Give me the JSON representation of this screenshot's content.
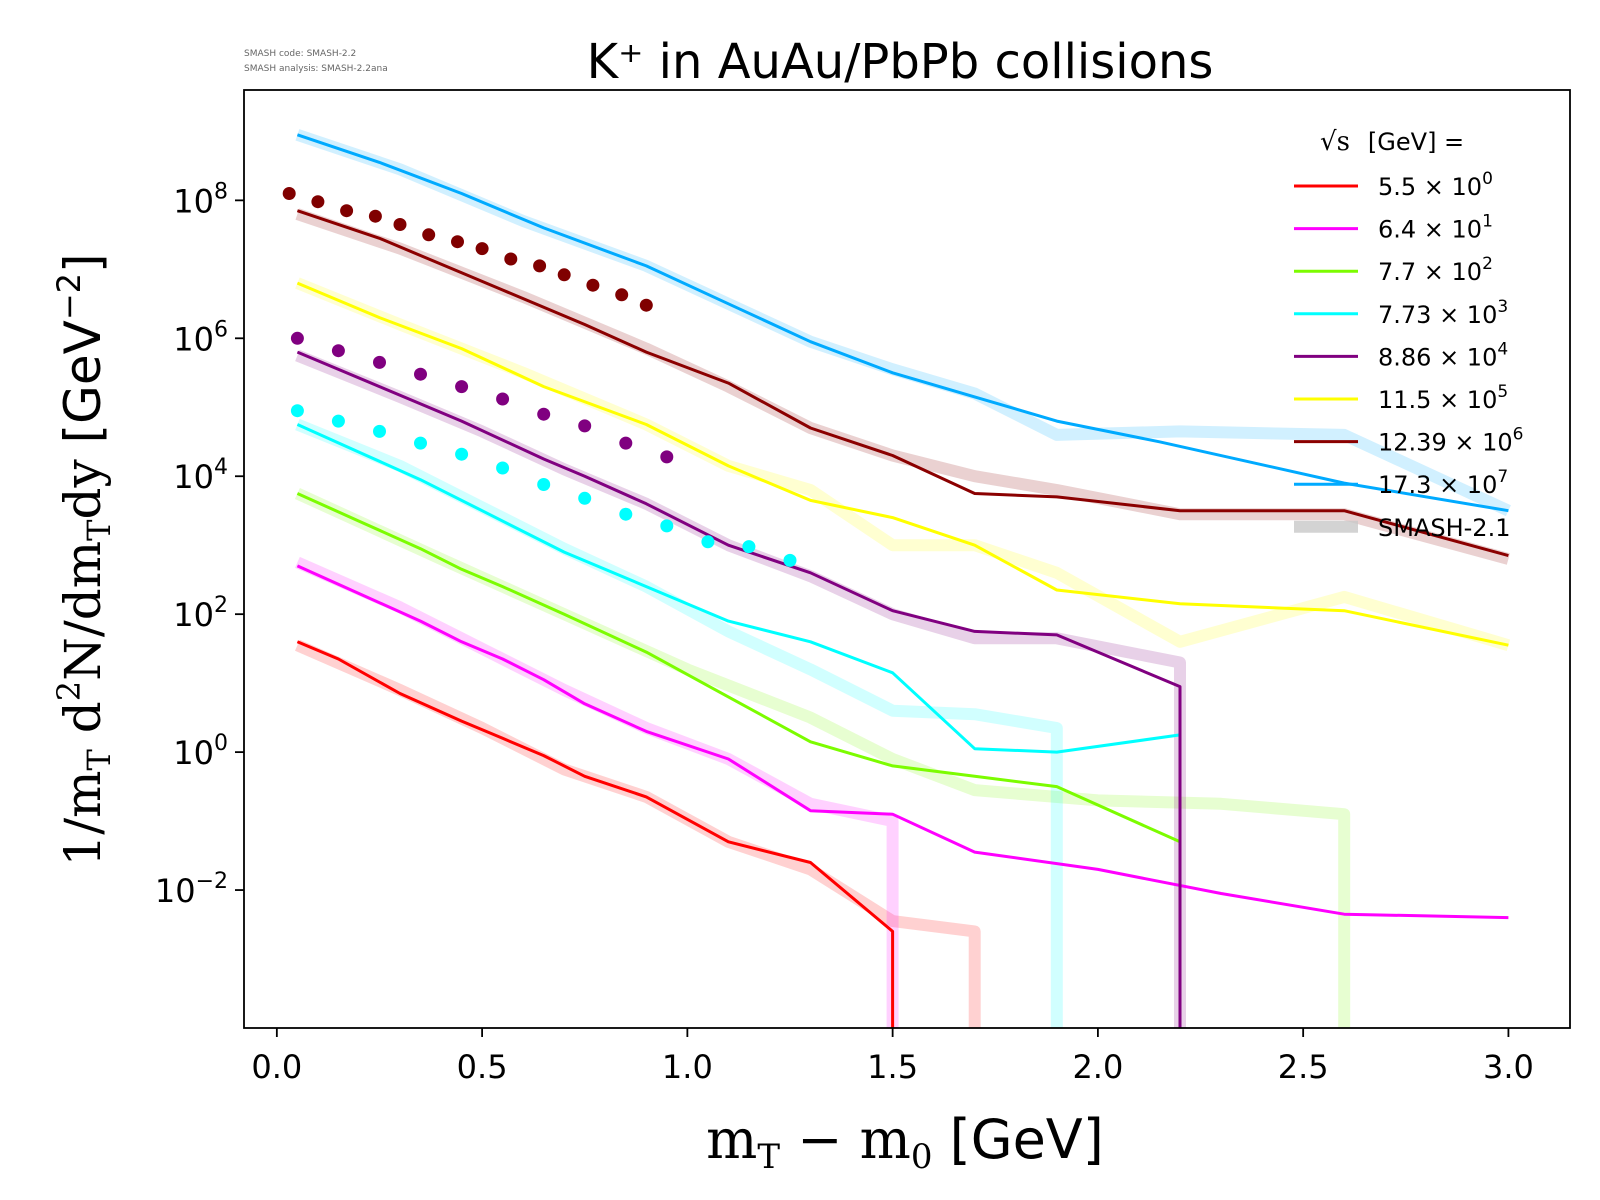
{
  "page": {
    "notes": [
      "SMASH code:      SMASH-2.2",
      "SMASH analysis: SMASH-2.2ana"
    ]
  },
  "chart_data": {
    "type": "line",
    "title": "K⁺ in AuAu/PbPb collisions",
    "xlabel": "m_T − m_0 [GeV]",
    "ylabel": "1/m_T d²N/dm_T dy [GeV⁻²]",
    "xlim": [
      -0.08,
      3.15
    ],
    "ylog": true,
    "ylim_log10": [
      -4.0,
      9.6
    ],
    "x_ticks": [
      "0.0",
      "0.5",
      "1.0",
      "1.5",
      "2.0",
      "2.5",
      "3.0"
    ],
    "y_ticks": [
      {
        "base": "10",
        "exp": "−2",
        "value": -2
      },
      {
        "base": "10",
        "exp": "0",
        "value": 0
      },
      {
        "base": "10",
        "exp": "2",
        "value": 2
      },
      {
        "base": "10",
        "exp": "4",
        "value": 4
      },
      {
        "base": "10",
        "exp": "6",
        "value": 6
      },
      {
        "base": "10",
        "exp": "8",
        "value": 8
      }
    ],
    "legend": {
      "title_prefix": "√s",
      "title_suffix": "[GeV] =",
      "placement": "top-right",
      "entries": [
        {
          "mantissa": "5.5",
          "exp": "0",
          "color": "#ff0000"
        },
        {
          "mantissa": "6.4",
          "exp": "1",
          "color": "#ff00ff"
        },
        {
          "mantissa": "7.7",
          "exp": "2",
          "color": "#7cfc00"
        },
        {
          "mantissa": "7.73",
          "exp": "3",
          "color": "#00ffff"
        },
        {
          "mantissa": "8.86",
          "exp": "4",
          "color": "#800080"
        },
        {
          "mantissa": "11.5",
          "exp": "5",
          "color": "#ffff00"
        },
        {
          "mantissa": "12.39",
          "exp": "6",
          "color": "#8b0000"
        },
        {
          "mantissa": "17.3",
          "exp": "7",
          "color": "#00aaff"
        }
      ],
      "reference_label": "SMASH-2.1",
      "reference_color": "#c8c8c8"
    },
    "series": [
      {
        "sqrt_s": "5.5",
        "color": "#ff0000",
        "line": [
          [
            0.05,
            1.6
          ],
          [
            0.15,
            1.35
          ],
          [
            0.3,
            0.85
          ],
          [
            0.45,
            0.45
          ],
          [
            0.55,
            0.2
          ],
          [
            0.65,
            -0.05
          ],
          [
            0.75,
            -0.35
          ],
          [
            0.9,
            -0.65
          ],
          [
            1.1,
            -1.3
          ],
          [
            1.3,
            -1.6
          ],
          [
            1.5,
            -2.6
          ],
          [
            1.5,
            -4.0
          ]
        ],
        "ref": [
          [
            0.05,
            1.55
          ],
          [
            0.3,
            0.9
          ],
          [
            0.5,
            0.35
          ],
          [
            0.7,
            -0.25
          ],
          [
            0.9,
            -0.65
          ],
          [
            1.1,
            -1.3
          ],
          [
            1.3,
            -1.7
          ],
          [
            1.5,
            -2.45
          ],
          [
            1.7,
            -2.6
          ],
          [
            1.7,
            -4.0
          ]
        ]
      },
      {
        "sqrt_s": "6.4",
        "color": "#ff00ff",
        "line": [
          [
            0.05,
            2.7
          ],
          [
            0.2,
            2.3
          ],
          [
            0.35,
            1.9
          ],
          [
            0.45,
            1.6
          ],
          [
            0.55,
            1.35
          ],
          [
            0.65,
            1.05
          ],
          [
            0.75,
            0.7
          ],
          [
            0.9,
            0.3
          ],
          [
            1.1,
            -0.1
          ],
          [
            1.3,
            -0.85
          ],
          [
            1.5,
            -0.9
          ],
          [
            1.7,
            -1.45
          ],
          [
            2.0,
            -1.7
          ],
          [
            2.3,
            -2.05
          ],
          [
            2.6,
            -2.35
          ],
          [
            3.0,
            -2.4
          ]
        ],
        "ref": [
          [
            0.05,
            2.75
          ],
          [
            0.3,
            2.1
          ],
          [
            0.5,
            1.5
          ],
          [
            0.7,
            0.9
          ],
          [
            0.9,
            0.35
          ],
          [
            1.1,
            -0.1
          ],
          [
            1.3,
            -0.75
          ],
          [
            1.5,
            -1.0
          ],
          [
            1.5,
            -4.0
          ]
        ]
      },
      {
        "sqrt_s": "7.7",
        "color": "#7cfc00",
        "line": [
          [
            0.05,
            3.75
          ],
          [
            0.2,
            3.35
          ],
          [
            0.35,
            2.95
          ],
          [
            0.45,
            2.65
          ],
          [
            0.55,
            2.4
          ],
          [
            0.7,
            2.0
          ],
          [
            0.9,
            1.45
          ],
          [
            1.1,
            0.8
          ],
          [
            1.3,
            0.15
          ],
          [
            1.5,
            -0.2
          ],
          [
            1.7,
            -0.35
          ],
          [
            1.9,
            -0.5
          ],
          [
            2.2,
            -1.3
          ]
        ],
        "ref": [
          [
            0.05,
            3.75
          ],
          [
            0.4,
            2.8
          ],
          [
            0.7,
            2.0
          ],
          [
            1.0,
            1.2
          ],
          [
            1.3,
            0.5
          ],
          [
            1.5,
            -0.1
          ],
          [
            1.7,
            -0.55
          ],
          [
            2.0,
            -0.7
          ],
          [
            2.3,
            -0.75
          ],
          [
            2.6,
            -0.9
          ],
          [
            2.6,
            -4.0
          ]
        ]
      },
      {
        "sqrt_s": "7.73",
        "color": "#00ffff",
        "line": [
          [
            0.05,
            4.75
          ],
          [
            0.2,
            4.35
          ],
          [
            0.35,
            3.95
          ],
          [
            0.5,
            3.5
          ],
          [
            0.7,
            2.9
          ],
          [
            0.9,
            2.4
          ],
          [
            1.1,
            1.9
          ],
          [
            1.3,
            1.6
          ],
          [
            1.5,
            1.15
          ],
          [
            1.7,
            0.05
          ],
          [
            1.9,
            0.0
          ],
          [
            2.2,
            0.25
          ]
        ],
        "ref": [
          [
            0.05,
            4.75
          ],
          [
            0.3,
            4.15
          ],
          [
            0.5,
            3.55
          ],
          [
            0.7,
            2.95
          ],
          [
            0.9,
            2.4
          ],
          [
            1.1,
            1.75
          ],
          [
            1.3,
            1.2
          ],
          [
            1.5,
            0.6
          ],
          [
            1.7,
            0.55
          ],
          [
            1.9,
            0.35
          ],
          [
            1.9,
            -4.0
          ]
        ]
      },
      {
        "sqrt_s": "8.86",
        "color": "#800080",
        "line": [
          [
            0.05,
            5.8
          ],
          [
            0.25,
            5.3
          ],
          [
            0.45,
            4.8
          ],
          [
            0.65,
            4.25
          ],
          [
            0.75,
            4.0
          ],
          [
            0.9,
            3.6
          ],
          [
            1.1,
            3.0
          ],
          [
            1.3,
            2.6
          ],
          [
            1.5,
            2.05
          ],
          [
            1.7,
            1.75
          ],
          [
            1.9,
            1.7
          ],
          [
            2.2,
            0.95
          ],
          [
            2.2,
            -4.0
          ]
        ],
        "ref": [
          [
            0.05,
            5.75
          ],
          [
            0.3,
            5.15
          ],
          [
            0.5,
            4.65
          ],
          [
            0.7,
            4.1
          ],
          [
            0.9,
            3.6
          ],
          [
            1.1,
            3.0
          ],
          [
            1.3,
            2.55
          ],
          [
            1.5,
            2.0
          ],
          [
            1.7,
            1.65
          ],
          [
            1.9,
            1.65
          ],
          [
            2.2,
            1.3
          ],
          [
            2.2,
            -4.0
          ]
        ]
      },
      {
        "sqrt_s": "11.5",
        "color": "#ffff00",
        "line": [
          [
            0.05,
            6.8
          ],
          [
            0.25,
            6.3
          ],
          [
            0.45,
            5.85
          ],
          [
            0.65,
            5.3
          ],
          [
            0.9,
            4.75
          ],
          [
            1.1,
            4.15
          ],
          [
            1.3,
            3.65
          ],
          [
            1.5,
            3.4
          ],
          [
            1.7,
            3.0
          ],
          [
            1.9,
            2.35
          ],
          [
            2.2,
            2.15
          ],
          [
            2.6,
            2.05
          ],
          [
            3.0,
            1.55
          ]
        ],
        "ref": [
          [
            0.05,
            6.8
          ],
          [
            0.3,
            6.2
          ],
          [
            0.6,
            5.5
          ],
          [
            0.9,
            4.75
          ],
          [
            1.1,
            4.15
          ],
          [
            1.3,
            3.8
          ],
          [
            1.5,
            3.0
          ],
          [
            1.7,
            3.0
          ],
          [
            1.9,
            2.6
          ],
          [
            2.2,
            1.6
          ],
          [
            2.6,
            2.25
          ],
          [
            3.0,
            1.55
          ]
        ]
      },
      {
        "sqrt_s": "12.39",
        "color": "#8b0000",
        "line": [
          [
            0.05,
            7.85
          ],
          [
            0.25,
            7.45
          ],
          [
            0.45,
            6.95
          ],
          [
            0.55,
            6.7
          ],
          [
            0.75,
            6.2
          ],
          [
            0.9,
            5.8
          ],
          [
            1.1,
            5.35
          ],
          [
            1.3,
            4.7
          ],
          [
            1.5,
            4.3
          ],
          [
            1.7,
            3.75
          ],
          [
            1.9,
            3.7
          ],
          [
            2.2,
            3.5
          ],
          [
            2.6,
            3.5
          ],
          [
            3.0,
            2.85
          ]
        ],
        "ref": [
          [
            0.05,
            7.8
          ],
          [
            0.3,
            7.3
          ],
          [
            0.6,
            6.6
          ],
          [
            0.9,
            5.85
          ],
          [
            1.1,
            5.3
          ],
          [
            1.3,
            4.7
          ],
          [
            1.5,
            4.3
          ],
          [
            1.7,
            4.0
          ],
          [
            1.9,
            3.8
          ],
          [
            2.2,
            3.45
          ],
          [
            2.6,
            3.45
          ],
          [
            3.0,
            2.8
          ]
        ]
      },
      {
        "sqrt_s": "17.3",
        "color": "#00aaff",
        "line": [
          [
            0.05,
            8.95
          ],
          [
            0.25,
            8.55
          ],
          [
            0.45,
            8.1
          ],
          [
            0.65,
            7.6
          ],
          [
            0.9,
            7.05
          ],
          [
            1.1,
            6.5
          ],
          [
            1.3,
            5.95
          ],
          [
            1.5,
            5.5
          ],
          [
            1.7,
            5.15
          ],
          [
            1.9,
            4.8
          ],
          [
            2.15,
            4.5
          ],
          [
            2.6,
            3.9
          ],
          [
            3.0,
            3.5
          ]
        ],
        "ref": [
          [
            0.05,
            8.95
          ],
          [
            0.3,
            8.45
          ],
          [
            0.6,
            7.7
          ],
          [
            0.9,
            7.05
          ],
          [
            1.1,
            6.5
          ],
          [
            1.3,
            5.95
          ],
          [
            1.5,
            5.55
          ],
          [
            1.7,
            5.2
          ],
          [
            1.9,
            4.6
          ],
          [
            2.2,
            4.65
          ],
          [
            2.6,
            4.6
          ],
          [
            3.0,
            3.5
          ]
        ]
      }
    ],
    "points": [
      {
        "sqrt_s": "12.39",
        "color": "#800000",
        "data": [
          [
            0.03,
            8.1
          ],
          [
            0.1,
            7.98
          ],
          [
            0.17,
            7.85
          ],
          [
            0.24,
            7.77
          ],
          [
            0.3,
            7.65
          ],
          [
            0.37,
            7.5
          ],
          [
            0.44,
            7.4
          ],
          [
            0.5,
            7.3
          ],
          [
            0.57,
            7.15
          ],
          [
            0.64,
            7.05
          ],
          [
            0.7,
            6.92
          ],
          [
            0.77,
            6.77
          ],
          [
            0.84,
            6.63
          ],
          [
            0.9,
            6.48
          ]
        ]
      },
      {
        "sqrt_s": "8.86",
        "color": "#800080",
        "data": [
          [
            0.05,
            6.0
          ],
          [
            0.15,
            5.82
          ],
          [
            0.25,
            5.65
          ],
          [
            0.35,
            5.48
          ],
          [
            0.45,
            5.3
          ],
          [
            0.55,
            5.12
          ],
          [
            0.65,
            4.9
          ],
          [
            0.75,
            4.73
          ],
          [
            0.85,
            4.48
          ],
          [
            0.95,
            4.28
          ]
        ]
      },
      {
        "sqrt_s": "7.73",
        "color": "#00ffff",
        "data": [
          [
            0.05,
            4.95
          ],
          [
            0.15,
            4.8
          ],
          [
            0.25,
            4.65
          ],
          [
            0.35,
            4.48
          ],
          [
            0.45,
            4.32
          ],
          [
            0.55,
            4.12
          ],
          [
            0.65,
            3.88
          ],
          [
            0.75,
            3.68
          ],
          [
            0.85,
            3.45
          ],
          [
            0.95,
            3.28
          ],
          [
            1.05,
            3.05
          ],
          [
            1.15,
            2.98
          ],
          [
            1.25,
            2.78
          ]
        ]
      }
    ]
  }
}
